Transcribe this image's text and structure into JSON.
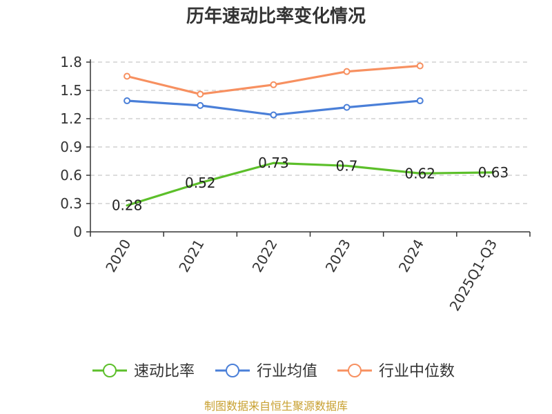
{
  "chart_data": {
    "type": "line",
    "title": "历年速动比率变化情况",
    "categories": [
      "2020",
      "2021",
      "2022",
      "2023",
      "2024",
      "2025Q1-Q3"
    ],
    "ylim": [
      0,
      1.8
    ],
    "yticks": [
      "0",
      "0.3",
      "0.6",
      "0.9",
      "1.2",
      "1.5",
      "1.8"
    ],
    "ytick_values": [
      0,
      0.3,
      0.6,
      0.9,
      1.2,
      1.5,
      1.8
    ],
    "grid": true,
    "legend_position": "bottom",
    "series": [
      {
        "name": "速动比率",
        "color": "#5cbf2a",
        "values": [
          0.28,
          0.52,
          0.73,
          0.7,
          0.62,
          0.63
        ],
        "labels": [
          "0.28",
          "0.52",
          "0.73",
          "0.7",
          "0.62",
          "0.63"
        ]
      },
      {
        "name": "行业均值",
        "color": "#4a7fd8",
        "values": [
          1.39,
          1.34,
          1.24,
          1.32,
          1.39,
          null
        ]
      },
      {
        "name": "行业中位数",
        "color": "#f79060",
        "values": [
          1.65,
          1.46,
          1.56,
          1.7,
          1.76,
          null
        ]
      }
    ]
  },
  "source": {
    "text": "制图数据来自恒生聚源数据库",
    "color": "#c8a030"
  }
}
